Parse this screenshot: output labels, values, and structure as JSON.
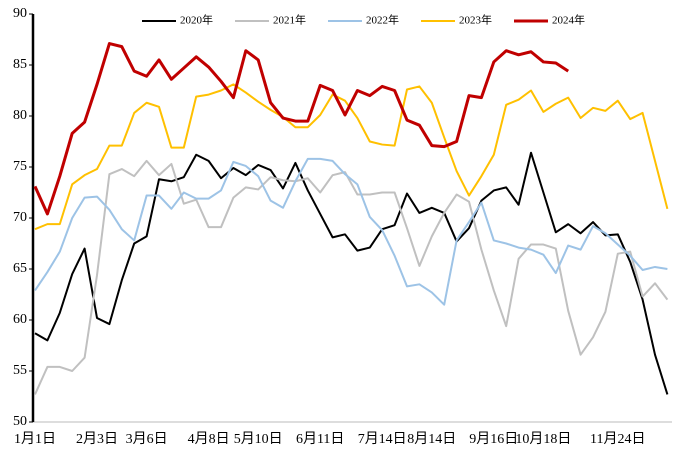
{
  "chart_data": {
    "type": "line",
    "categories": [
      "1月1日",
      null,
      null,
      null,
      null,
      "2月3日",
      null,
      null,
      null,
      "3月6日",
      null,
      null,
      null,
      null,
      "4月8日",
      null,
      null,
      null,
      "5月10日",
      null,
      null,
      null,
      null,
      "6月11日",
      null,
      null,
      null,
      null,
      "7月14日",
      null,
      null,
      null,
      "8月14日",
      null,
      null,
      null,
      null,
      "9月16日",
      null,
      null,
      null,
      "10月18日",
      null,
      null,
      null,
      null,
      null,
      "11月24日",
      null,
      null,
      null,
      null
    ],
    "ylim": [
      50,
      90
    ],
    "yticks": [
      50,
      55,
      60,
      65,
      70,
      75,
      80,
      85,
      90
    ],
    "grid": false,
    "legend": "top",
    "series": [
      {
        "name": "2020年",
        "color": "#000000",
        "values": [
          58.7,
          58.0,
          60.7,
          64.5,
          67.0,
          60.2,
          59.6,
          63.9,
          67.5,
          68.2,
          73.8,
          73.6,
          74.0,
          76.2,
          75.6,
          73.9,
          74.9,
          74.2,
          75.2,
          74.7,
          72.9,
          75.4,
          72.7,
          70.4,
          68.1,
          68.4,
          66.8,
          67.1,
          68.9,
          69.3,
          72.4,
          70.5,
          71.0,
          70.5,
          67.7,
          69.0,
          71.7,
          72.7,
          73.0,
          71.3,
          76.4,
          72.5,
          68.6,
          69.4,
          68.5,
          69.6,
          68.3,
          68.4,
          65.7,
          62.0,
          56.6,
          52.7
        ]
      },
      {
        "name": "2021年",
        "color": "#c0c0c0",
        "values": [
          52.7,
          55.4,
          55.4,
          55.0,
          56.3,
          64.4,
          74.3,
          74.8,
          74.1,
          75.6,
          74.2,
          75.3,
          71.4,
          71.8,
          69.1,
          69.1,
          72.0,
          73.0,
          72.8,
          74.0,
          73.7,
          73.6,
          73.9,
          72.5,
          74.2,
          74.5,
          72.3,
          72.3,
          72.5,
          72.5,
          69.0,
          65.3,
          68.2,
          70.5,
          72.3,
          71.6,
          66.9,
          62.9,
          59.4,
          66.0,
          67.4,
          67.4,
          67.0,
          60.9,
          56.6,
          58.3,
          60.8,
          66.5,
          66.7,
          62.3,
          63.6,
          62.0
        ]
      },
      {
        "name": "2022年",
        "color": "#9dc3e6",
        "values": [
          62.9,
          64.7,
          66.7,
          70.0,
          72.0,
          72.1,
          70.8,
          68.9,
          67.8,
          72.2,
          72.2,
          70.9,
          72.5,
          71.9,
          71.9,
          72.7,
          75.5,
          75.1,
          74.1,
          71.7,
          71.0,
          73.6,
          75.8,
          75.8,
          75.6,
          74.3,
          73.3,
          70.1,
          68.8,
          66.3,
          63.3,
          63.5,
          62.7,
          61.5,
          67.8,
          69.6,
          71.5,
          67.8,
          67.5,
          67.1,
          66.9,
          66.4,
          64.6,
          67.3,
          66.9,
          69.2,
          68.5,
          67.4,
          66.3,
          64.9,
          65.2,
          65.0
        ]
      },
      {
        "name": "2023年",
        "color": "#ffc000",
        "values": [
          68.9,
          69.4,
          69.4,
          73.3,
          74.2,
          74.8,
          77.1,
          77.1,
          80.3,
          81.3,
          80.9,
          76.9,
          76.9,
          81.9,
          82.1,
          82.5,
          83.1,
          82.3,
          81.4,
          80.6,
          79.9,
          78.9,
          78.9,
          80.1,
          82.1,
          81.5,
          79.8,
          77.5,
          77.2,
          77.1,
          82.6,
          82.9,
          81.3,
          77.9,
          74.6,
          72.2,
          74.1,
          76.2,
          81.1,
          81.6,
          82.5,
          80.4,
          81.2,
          81.8,
          79.8,
          80.8,
          80.5,
          81.5,
          79.7,
          80.3,
          75.6,
          70.9
        ]
      },
      {
        "name": "2024年",
        "color": "#c00000",
        "values": [
          73.1,
          70.4,
          74.1,
          78.3,
          79.4,
          83.1,
          87.1,
          86.8,
          84.4,
          83.9,
          85.5,
          83.6,
          84.7,
          85.8,
          84.8,
          83.4,
          81.8,
          86.4,
          85.5,
          81.3,
          79.8,
          79.5,
          79.5,
          83.0,
          82.5,
          80.1,
          82.5,
          82.0,
          82.9,
          82.5,
          79.6,
          79.1,
          77.1,
          77.0,
          77.5,
          82.0,
          81.8,
          85.3,
          86.4,
          86.0,
          86.3,
          85.3,
          85.2,
          84.4,
          null,
          null,
          null,
          null,
          null,
          null,
          null,
          null
        ]
      }
    ]
  }
}
